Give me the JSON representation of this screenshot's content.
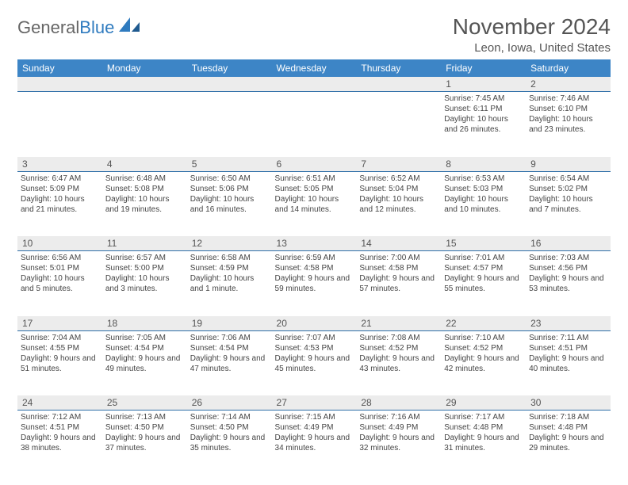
{
  "logo": {
    "text_gray": "General",
    "text_blue": "Blue"
  },
  "title": "November 2024",
  "location": "Leon, Iowa, United States",
  "colors": {
    "header_bg": "#3d85c6",
    "header_text": "#ffffff",
    "daynum_bg": "#ececec",
    "day_border": "#2f6fa8",
    "body_text": "#444444",
    "title_text": "#555555"
  },
  "day_headers": [
    "Sunday",
    "Monday",
    "Tuesday",
    "Wednesday",
    "Thursday",
    "Friday",
    "Saturday"
  ],
  "weeks": [
    {
      "nums": [
        "",
        "",
        "",
        "",
        "",
        "1",
        "2"
      ],
      "cells": [
        null,
        null,
        null,
        null,
        null,
        {
          "sunrise": "7:45 AM",
          "sunset": "6:11 PM",
          "daylight": "10 hours and 26 minutes."
        },
        {
          "sunrise": "7:46 AM",
          "sunset": "6:10 PM",
          "daylight": "10 hours and 23 minutes."
        }
      ]
    },
    {
      "nums": [
        "3",
        "4",
        "5",
        "6",
        "7",
        "8",
        "9"
      ],
      "cells": [
        {
          "sunrise": "6:47 AM",
          "sunset": "5:09 PM",
          "daylight": "10 hours and 21 minutes."
        },
        {
          "sunrise": "6:48 AM",
          "sunset": "5:08 PM",
          "daylight": "10 hours and 19 minutes."
        },
        {
          "sunrise": "6:50 AM",
          "sunset": "5:06 PM",
          "daylight": "10 hours and 16 minutes."
        },
        {
          "sunrise": "6:51 AM",
          "sunset": "5:05 PM",
          "daylight": "10 hours and 14 minutes."
        },
        {
          "sunrise": "6:52 AM",
          "sunset": "5:04 PM",
          "daylight": "10 hours and 12 minutes."
        },
        {
          "sunrise": "6:53 AM",
          "sunset": "5:03 PM",
          "daylight": "10 hours and 10 minutes."
        },
        {
          "sunrise": "6:54 AM",
          "sunset": "5:02 PM",
          "daylight": "10 hours and 7 minutes."
        }
      ]
    },
    {
      "nums": [
        "10",
        "11",
        "12",
        "13",
        "14",
        "15",
        "16"
      ],
      "cells": [
        {
          "sunrise": "6:56 AM",
          "sunset": "5:01 PM",
          "daylight": "10 hours and 5 minutes."
        },
        {
          "sunrise": "6:57 AM",
          "sunset": "5:00 PM",
          "daylight": "10 hours and 3 minutes."
        },
        {
          "sunrise": "6:58 AM",
          "sunset": "4:59 PM",
          "daylight": "10 hours and 1 minute."
        },
        {
          "sunrise": "6:59 AM",
          "sunset": "4:58 PM",
          "daylight": "9 hours and 59 minutes."
        },
        {
          "sunrise": "7:00 AM",
          "sunset": "4:58 PM",
          "daylight": "9 hours and 57 minutes."
        },
        {
          "sunrise": "7:01 AM",
          "sunset": "4:57 PM",
          "daylight": "9 hours and 55 minutes."
        },
        {
          "sunrise": "7:03 AM",
          "sunset": "4:56 PM",
          "daylight": "9 hours and 53 minutes."
        }
      ]
    },
    {
      "nums": [
        "17",
        "18",
        "19",
        "20",
        "21",
        "22",
        "23"
      ],
      "cells": [
        {
          "sunrise": "7:04 AM",
          "sunset": "4:55 PM",
          "daylight": "9 hours and 51 minutes."
        },
        {
          "sunrise": "7:05 AM",
          "sunset": "4:54 PM",
          "daylight": "9 hours and 49 minutes."
        },
        {
          "sunrise": "7:06 AM",
          "sunset": "4:54 PM",
          "daylight": "9 hours and 47 minutes."
        },
        {
          "sunrise": "7:07 AM",
          "sunset": "4:53 PM",
          "daylight": "9 hours and 45 minutes."
        },
        {
          "sunrise": "7:08 AM",
          "sunset": "4:52 PM",
          "daylight": "9 hours and 43 minutes."
        },
        {
          "sunrise": "7:10 AM",
          "sunset": "4:52 PM",
          "daylight": "9 hours and 42 minutes."
        },
        {
          "sunrise": "7:11 AM",
          "sunset": "4:51 PM",
          "daylight": "9 hours and 40 minutes."
        }
      ]
    },
    {
      "nums": [
        "24",
        "25",
        "26",
        "27",
        "28",
        "29",
        "30"
      ],
      "cells": [
        {
          "sunrise": "7:12 AM",
          "sunset": "4:51 PM",
          "daylight": "9 hours and 38 minutes."
        },
        {
          "sunrise": "7:13 AM",
          "sunset": "4:50 PM",
          "daylight": "9 hours and 37 minutes."
        },
        {
          "sunrise": "7:14 AM",
          "sunset": "4:50 PM",
          "daylight": "9 hours and 35 minutes."
        },
        {
          "sunrise": "7:15 AM",
          "sunset": "4:49 PM",
          "daylight": "9 hours and 34 minutes."
        },
        {
          "sunrise": "7:16 AM",
          "sunset": "4:49 PM",
          "daylight": "9 hours and 32 minutes."
        },
        {
          "sunrise": "7:17 AM",
          "sunset": "4:48 PM",
          "daylight": "9 hours and 31 minutes."
        },
        {
          "sunrise": "7:18 AM",
          "sunset": "4:48 PM",
          "daylight": "9 hours and 29 minutes."
        }
      ]
    }
  ],
  "labels": {
    "sunrise": "Sunrise:",
    "sunset": "Sunset:",
    "daylight": "Daylight:"
  }
}
